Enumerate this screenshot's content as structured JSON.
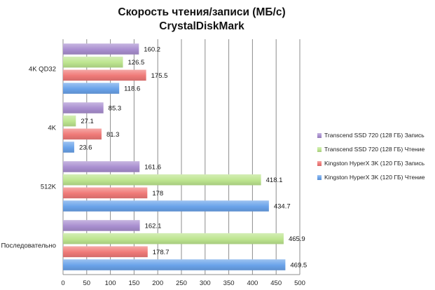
{
  "chart_data": {
    "type": "bar",
    "orientation": "horizontal",
    "title_lines": [
      "Скорость чтения/записи (МБ/с)",
      "CrystalDiskMark"
    ],
    "xlabel": "",
    "ylabel": "",
    "xlim": [
      0,
      500
    ],
    "xticks": [
      0,
      50,
      100,
      150,
      200,
      250,
      300,
      350,
      400,
      450,
      500
    ],
    "grid": true,
    "legend_position": "right",
    "categories": [
      "4K QD32",
      "4K",
      "512K",
      "Последовательно"
    ],
    "series": [
      {
        "name": "Transcend SSD 720 (128 ГБ) Запись",
        "color": "#a98fd0",
        "values": [
          160.2,
          85.3,
          161.6,
          162.1
        ]
      },
      {
        "name": "Transcend SSD 720 (128 ГБ) Чтение",
        "color": "#bde58f",
        "values": [
          126.5,
          27.1,
          418.1,
          465.9
        ]
      },
      {
        "name": "Kingston HyperX 3K (120 ГБ) Запись",
        "color": "#f07a78",
        "values": [
          175.5,
          81.3,
          178,
          178.7
        ]
      },
      {
        "name": "Kingston HyperX 3K (120 ГБ) Чтение",
        "color": "#6aa3ea",
        "values": [
          118.6,
          23.6,
          434.7,
          469.5
        ]
      }
    ],
    "data_labels": [
      [
        "160.2",
        "85.3",
        "161.6",
        "162.1"
      ],
      [
        "126.5",
        "27.1",
        "418.1",
        "465.9"
      ],
      [
        "175.5",
        "81.3",
        "178",
        "178.7"
      ],
      [
        "118.6",
        "23.6",
        "434.7",
        "469.5"
      ]
    ]
  }
}
